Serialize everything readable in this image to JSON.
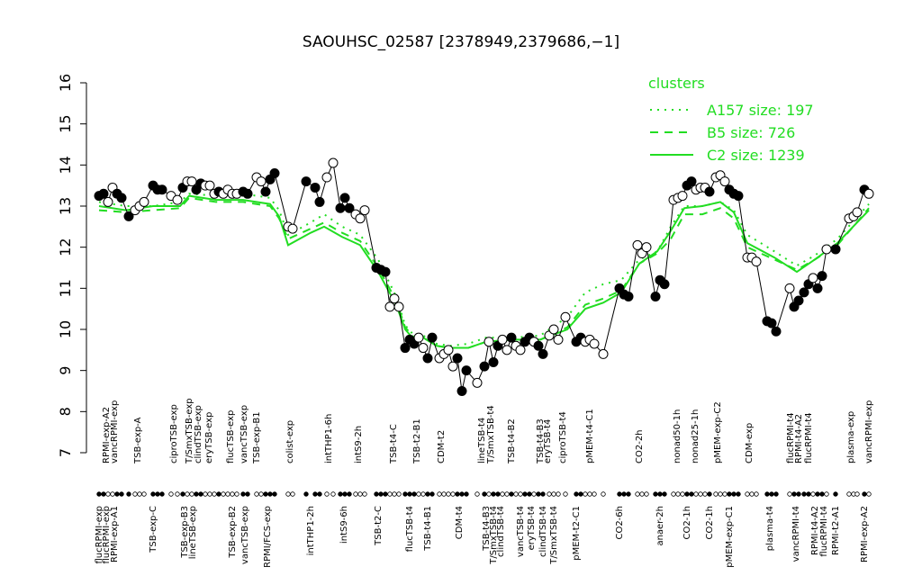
{
  "chart_data": {
    "type": "line",
    "title": "SAOUHSC_02587 [2378949,2379686,−1]",
    "ylim": [
      7,
      16
    ],
    "yticks": [
      7,
      8,
      9,
      10,
      11,
      12,
      13,
      14,
      15,
      16
    ],
    "xlim": [
      100,
      975
    ],
    "samples": {
      "x": [
        110,
        115,
        120,
        125,
        130,
        135,
        143,
        150,
        155,
        160,
        170,
        175,
        180,
        190,
        197,
        203,
        208,
        213,
        218,
        223,
        228,
        233,
        238,
        243,
        248,
        253,
        258,
        263,
        270,
        275,
        285,
        290,
        295,
        300,
        305,
        320,
        325,
        340,
        350,
        355,
        363,
        370,
        378,
        383,
        388,
        395,
        400,
        405,
        418,
        423,
        428,
        433,
        438,
        443,
        450,
        455,
        460,
        465,
        470,
        475,
        480,
        488,
        493,
        498,
        503,
        508,
        513,
        518,
        530,
        538,
        543,
        548,
        553,
        558,
        563,
        568,
        573,
        578,
        583,
        588,
        593,
        598,
        603,
        610,
        615,
        620,
        628,
        640,
        645,
        650,
        655,
        660,
        670,
        688,
        693,
        698,
        708,
        713,
        718,
        728,
        733,
        738,
        748,
        753,
        758,
        763,
        768,
        773,
        778,
        783,
        788,
        795,
        800,
        805,
        810,
        815,
        820,
        830,
        835,
        840,
        852,
        857,
        862,
        877,
        882,
        887,
        893,
        898,
        903,
        908,
        913,
        918,
        928,
        943,
        948,
        952,
        960,
        965
      ],
      "values": [
        13.25,
        13.3,
        13.1,
        13.45,
        13.3,
        13.2,
        12.75,
        12.9,
        13.0,
        13.1,
        13.5,
        13.4,
        13.4,
        13.25,
        13.15,
        13.45,
        13.6,
        13.6,
        13.4,
        13.55,
        13.5,
        13.5,
        13.3,
        13.35,
        13.3,
        13.4,
        13.3,
        13.3,
        13.35,
        13.3,
        13.7,
        13.6,
        13.35,
        13.65,
        13.8,
        12.5,
        12.45,
        13.6,
        13.45,
        13.1,
        13.7,
        14.05,
        12.95,
        13.2,
        12.95,
        12.8,
        12.7,
        12.9,
        11.5,
        11.45,
        11.4,
        10.55,
        10.75,
        10.55,
        9.55,
        9.75,
        9.65,
        9.8,
        9.55,
        9.3,
        9.8,
        9.3,
        9.4,
        9.5,
        9.1,
        9.3,
        8.5,
        9.0,
        8.7,
        9.1,
        9.7,
        9.2,
        9.6,
        9.75,
        9.5,
        9.8,
        9.6,
        9.5,
        9.7,
        9.8,
        9.7,
        9.6,
        9.4,
        9.85,
        10.0,
        9.75,
        10.3,
        9.7,
        9.8,
        9.7,
        9.75,
        9.65,
        9.4,
        11.0,
        10.85,
        10.8,
        12.05,
        11.85,
        12.0,
        10.8,
        11.2,
        11.1,
        13.15,
        13.2,
        13.25,
        13.5,
        13.6,
        13.4,
        13.45,
        13.45,
        13.35,
        13.7,
        13.75,
        13.6,
        13.4,
        13.3,
        13.25,
        11.75,
        11.75,
        11.65,
        10.2,
        10.15,
        9.95,
        11.0,
        10.55,
        10.7,
        10.9,
        11.1,
        11.25,
        11.0,
        11.3,
        11.95,
        11.95,
        12.7,
        12.75,
        12.85,
        13.4,
        13.3
      ],
      "filled": [
        true,
        true,
        false,
        false,
        true,
        true,
        true,
        false,
        false,
        false,
        true,
        true,
        true,
        false,
        false,
        true,
        false,
        false,
        true,
        true,
        false,
        false,
        false,
        true,
        false,
        false,
        false,
        false,
        true,
        true,
        false,
        false,
        true,
        true,
        true,
        false,
        false,
        true,
        true,
        true,
        false,
        false,
        true,
        true,
        true,
        false,
        false,
        false,
        true,
        true,
        true,
        false,
        false,
        false,
        true,
        true,
        true,
        false,
        false,
        true,
        true,
        false,
        false,
        false,
        false,
        true,
        true,
        true,
        false,
        true,
        false,
        true,
        true,
        false,
        false,
        true,
        false,
        false,
        true,
        true,
        false,
        true,
        true,
        false,
        false,
        false,
        false,
        true,
        true,
        false,
        false,
        false,
        false,
        true,
        true,
        true,
        false,
        false,
        false,
        true,
        true,
        true,
        false,
        false,
        false,
        true,
        true,
        false,
        false,
        false,
        true,
        false,
        false,
        false,
        true,
        true,
        true,
        false,
        false,
        false,
        true,
        true,
        true,
        false,
        true,
        true,
        true,
        true,
        false,
        true,
        true,
        false,
        true,
        false,
        false,
        false,
        true,
        false
      ]
    },
    "legend_title": "clusters",
    "series": [
      {
        "name": "A157 size: 197",
        "color": "#22dd22",
        "style": "dotted",
        "x": [
          110,
          140,
          170,
          200,
          210,
          240,
          270,
          300,
          310,
          320,
          345,
          360,
          380,
          400,
          420,
          440,
          450,
          460,
          470,
          485,
          500,
          520,
          540,
          570,
          600,
          630,
          650,
          670,
          690,
          710,
          730,
          745,
          760,
          780,
          800,
          815,
          830,
          860,
          885,
          905,
          930,
          965
        ],
        "values": [
          13.1,
          13.0,
          13.0,
          13.1,
          13.3,
          13.25,
          13.3,
          13.2,
          12.9,
          12.3,
          12.6,
          12.8,
          12.5,
          12.3,
          11.7,
          10.8,
          10.1,
          9.85,
          9.85,
          9.65,
          9.6,
          9.65,
          9.8,
          9.8,
          9.85,
          10.3,
          10.9,
          11.1,
          11.2,
          11.7,
          11.9,
          12.5,
          13.0,
          13.0,
          13.1,
          12.9,
          12.3,
          11.9,
          11.55,
          11.8,
          12.2,
          13.05
        ]
      },
      {
        "name": "B5 size: 726",
        "color": "#22dd22",
        "style": "dashed",
        "x": [
          110,
          140,
          170,
          200,
          210,
          240,
          270,
          300,
          310,
          320,
          345,
          360,
          380,
          400,
          420,
          440,
          450,
          460,
          470,
          485,
          500,
          520,
          540,
          570,
          600,
          630,
          650,
          670,
          690,
          710,
          730,
          745,
          760,
          780,
          800,
          815,
          830,
          860,
          885,
          905,
          930,
          965
        ],
        "values": [
          12.9,
          12.85,
          12.9,
          12.95,
          13.2,
          13.1,
          13.1,
          13.0,
          12.7,
          12.2,
          12.45,
          12.6,
          12.35,
          12.15,
          11.5,
          10.7,
          10.05,
          9.8,
          9.8,
          9.6,
          9.55,
          9.55,
          9.7,
          9.75,
          9.75,
          10.05,
          10.6,
          10.75,
          10.95,
          11.6,
          11.85,
          12.2,
          12.8,
          12.8,
          12.95,
          12.7,
          12.0,
          11.7,
          11.45,
          11.7,
          12.05,
          12.95
        ]
      },
      {
        "name": "C2 size: 1239",
        "color": "#22dd22",
        "style": "solid",
        "x": [
          110,
          140,
          170,
          200,
          210,
          240,
          270,
          300,
          310,
          320,
          345,
          360,
          380,
          400,
          420,
          440,
          450,
          460,
          470,
          485,
          500,
          520,
          540,
          570,
          600,
          630,
          650,
          670,
          690,
          710,
          730,
          745,
          760,
          780,
          800,
          815,
          830,
          860,
          885,
          905,
          930,
          965
        ],
        "values": [
          13.0,
          12.9,
          13.0,
          13.0,
          13.25,
          13.15,
          13.15,
          13.05,
          12.75,
          12.05,
          12.35,
          12.5,
          12.25,
          12.05,
          11.4,
          10.6,
          10.0,
          9.75,
          9.8,
          9.6,
          9.55,
          9.55,
          9.7,
          9.75,
          9.75,
          10.0,
          10.5,
          10.65,
          10.9,
          11.6,
          11.9,
          12.4,
          12.95,
          13.0,
          13.1,
          12.85,
          12.1,
          11.75,
          11.4,
          11.7,
          12.1,
          12.9
        ]
      }
    ],
    "top_labels": {
      "x": [
        118,
        127,
        153,
        193,
        210,
        220,
        232,
        256,
        271,
        285,
        322,
        365,
        398,
        437,
        463,
        490,
        535,
        545,
        568,
        600,
        608,
        625,
        655,
        710,
        752,
        772,
        797,
        832,
        878,
        887,
        898,
        945,
        965
      ],
      "labels": [
        "RPMI-exp-A2",
        "vancRPMI-exp",
        "TSB-exp-A",
        "ciproTSB-exp",
        "T/SmxTSB-exp",
        "clindTSB-exp",
        "eryTSB-exp",
        "flucTSB-exp",
        "vancTSB-exp",
        "TSB-exp-B1",
        "colist-exp",
        "intTHP1-6h",
        "intS9-2h",
        "TSB-t4-C",
        "TSB-t2-B1",
        "CDM-t2",
        "lineTSB-t4",
        "T/SmxTSB-t4",
        "TSB-t4-B2",
        "TSB-t4-B3",
        "eryTSB-t4",
        "ciproTSB-t4",
        "pMEM-t4-C1",
        "CO2-2h",
        "nonad50-1h",
        "nonad25-1h",
        "pMEM-exp-C2",
        "CDM-exp",
        "flucRPMI-t4",
        "RPMI-t4-A2",
        "flucRPMI-t4",
        "plasma-exp",
        "vancRPMI-exp"
      ]
    },
    "bottom_labels": {
      "x": [
        110,
        118,
        127,
        170,
        205,
        214,
        258,
        272,
        297,
        345,
        382,
        420,
        455,
        475,
        510,
        540,
        548,
        556,
        578,
        590,
        603,
        615,
        640,
        688,
        733,
        763,
        788,
        810,
        855,
        884,
        905,
        915,
        928,
        960
      ],
      "labels": [
        "flucRPMI-exp",
        "flucRPMI-exp",
        "RPMI-exp-A1",
        "TSB-exp-C",
        "TSB-exp-B3",
        "lineTSB-exp",
        "TSB-exp-B2",
        "vancTSB-exp",
        "RPMI/FCS-exp",
        "intTHP1-2h",
        "intS9-6h",
        "TSB-t2-C",
        "flucTSB-t4",
        "TSB-t4-B1",
        "CDM-t4",
        "TSB-t4-B3",
        "T/SmxTSB-t4",
        "clindTSB-t4",
        "vancTSB-t4",
        "eryTSB-t4",
        "clindTSB-t4",
        "T/SmxTSB-t4",
        "pMEM-t2-C1",
        "CO2-6h",
        "anaer-2h",
        "CO2-1h",
        "CO2-1h",
        "pMEM-exp-C1",
        "plasma-t4",
        "vancRPMI-t4",
        "RPMI-t4-A2",
        "flucRPMI-t4",
        "RPMI-t2-A1",
        "RPMI-exp-A2"
      ]
    }
  }
}
